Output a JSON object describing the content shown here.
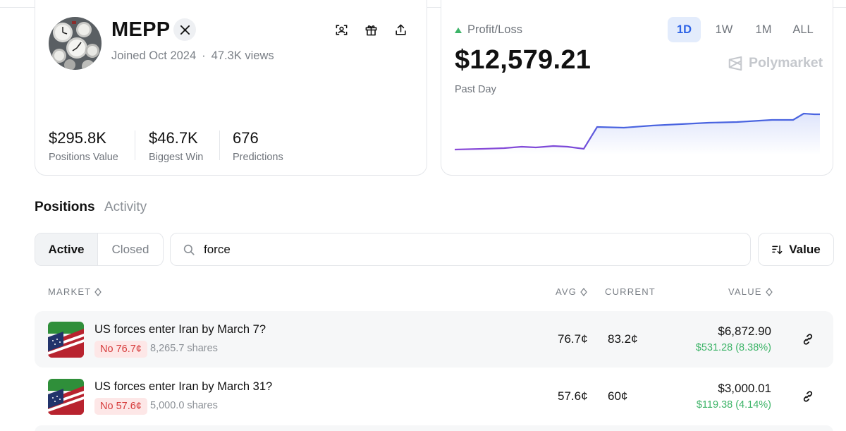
{
  "profile": {
    "username": "MEPP",
    "joined": "Joined Oct 2024",
    "views": "47.3K views",
    "separator": "·",
    "stats": [
      {
        "value": "$295.8K",
        "label": "Positions Value"
      },
      {
        "value": "$46.7K",
        "label": "Biggest Win"
      },
      {
        "value": "676",
        "label": "Predictions"
      }
    ],
    "icons": [
      "x-logo-icon",
      "scan-icon",
      "gift-icon",
      "share-icon"
    ]
  },
  "pnl": {
    "label": "Profit/Loss",
    "value": "$12,579.21",
    "period": "Past Day",
    "brand": "Polymarket",
    "ranges": [
      "1D",
      "1W",
      "1M",
      "ALL"
    ],
    "active_range": "1D",
    "colors": {
      "accent": "#2d63e6",
      "up": "#3db468",
      "line_start": "#8b4bd8",
      "line_end": "#4a64e0"
    }
  },
  "tabs": {
    "positions": "Positions",
    "activity": "Activity"
  },
  "filters": {
    "active": "Active",
    "closed": "Closed",
    "search_value": "force",
    "sort_label": "Value"
  },
  "table": {
    "headers": {
      "market": "MARKET",
      "avg": "AVG",
      "current": "CURRENT",
      "value": "VALUE"
    },
    "rows": [
      {
        "title": "US forces enter Iran by March 7?",
        "outcome": "No 76.7¢",
        "shares": "8,265.7 shares",
        "avg": "76.7¢",
        "current": "83.2¢",
        "value": "$6,872.90",
        "change": "$531.28 (8.38%)"
      },
      {
        "title": "US forces enter Iran by March 31?",
        "outcome": "No 57.6¢",
        "shares": "5,000.0 shares",
        "avg": "57.6¢",
        "current": "60¢",
        "value": "$3,000.01",
        "change": "$119.38 (4.14%)"
      }
    ]
  }
}
